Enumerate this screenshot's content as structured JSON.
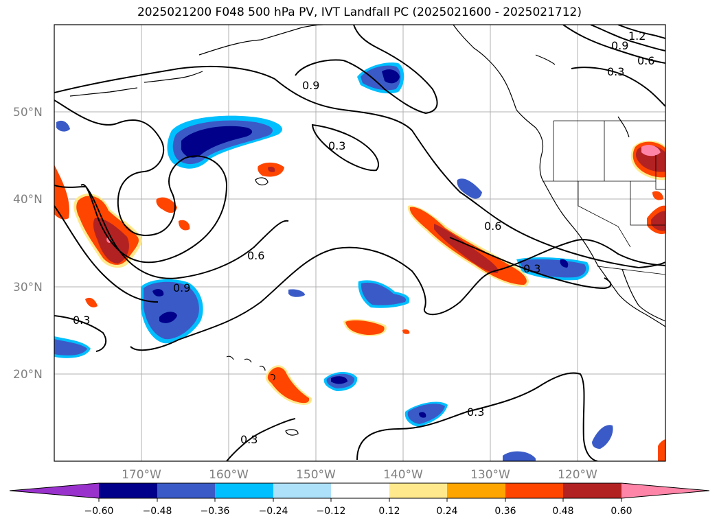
{
  "title": "2025021200 F048 500 hPa PV, IVT Landfall PC (2025021600 - 2025021712)",
  "map": {
    "lat_labels": [
      "50°N",
      "40°N",
      "30°N",
      "20°N"
    ],
    "lon_labels": [
      "170°W",
      "160°W",
      "150°W",
      "140°W",
      "130°W",
      "120°W"
    ],
    "contour_labels": [
      "1.2",
      "0.9",
      "0.6",
      "0.3",
      "0.9",
      "0.3",
      "0.6",
      "0.6",
      "0.9",
      "0.3",
      "0.3",
      "0.3",
      "0.3"
    ]
  },
  "colorbar": {
    "ticks": [
      "−0.60",
      "−0.48",
      "−0.36",
      "−0.24",
      "−0.12",
      "0.12",
      "0.24",
      "0.36",
      "0.48",
      "0.60"
    ],
    "colors": {
      "under": "#9932CC",
      "bins": [
        "#00008B",
        "#3A5BC7",
        "#00BFFF",
        "#ADE1FA",
        "#FFFFFF",
        "#FFE98C",
        "#FFA500",
        "#FF4500",
        "#B22222"
      ],
      "over": "#FF85A8"
    }
  }
}
